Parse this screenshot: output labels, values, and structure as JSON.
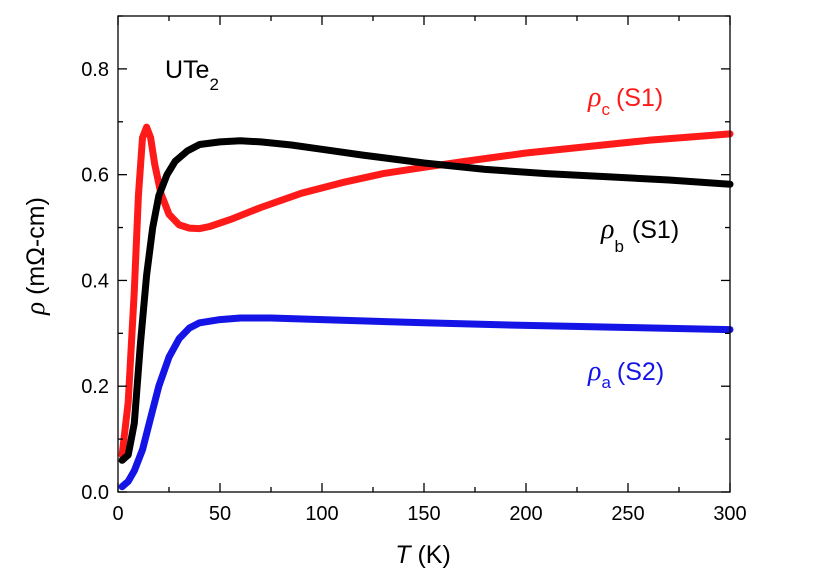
{
  "chart_data": {
    "type": "line",
    "title": "UTe",
    "title_subscript": "2",
    "xlabel_symbol": "T",
    "xlabel_unit": "(K)",
    "ylabel_symbol": "ρ",
    "ylabel_unit": "(mΩ-cm)",
    "xlim": [
      0,
      300
    ],
    "ylim": [
      0,
      0.9
    ],
    "x_ticks": [
      0,
      50,
      100,
      150,
      200,
      250,
      300
    ],
    "x_tick_labels": [
      "0",
      "50",
      "100",
      "150",
      "200",
      "250",
      "300"
    ],
    "y_ticks": [
      0.0,
      0.2,
      0.4,
      0.6,
      0.8
    ],
    "y_tick_labels": [
      "0.0",
      "0.2",
      "0.4",
      "0.6",
      "0.8"
    ],
    "grid": false,
    "series": [
      {
        "name": "ρc (S1)",
        "symbol": "ρ",
        "subscript": "c",
        "sample": "(S1)",
        "color": "#ff1a1a",
        "points": [
          [
            2,
            0.07
          ],
          [
            5,
            0.17
          ],
          [
            8,
            0.38
          ],
          [
            10,
            0.56
          ],
          [
            12,
            0.67
          ],
          [
            14,
            0.69
          ],
          [
            16,
            0.67
          ],
          [
            18,
            0.62
          ],
          [
            21,
            0.565
          ],
          [
            25,
            0.525
          ],
          [
            30,
            0.505
          ],
          [
            35,
            0.499
          ],
          [
            40,
            0.498
          ],
          [
            45,
            0.502
          ],
          [
            55,
            0.515
          ],
          [
            70,
            0.538
          ],
          [
            90,
            0.565
          ],
          [
            110,
            0.585
          ],
          [
            130,
            0.602
          ],
          [
            150,
            0.614
          ],
          [
            170,
            0.625
          ],
          [
            200,
            0.641
          ],
          [
            230,
            0.653
          ],
          [
            260,
            0.665
          ],
          [
            290,
            0.674
          ],
          [
            300,
            0.677
          ]
        ]
      },
      {
        "name": "ρb (S1)",
        "symbol": "ρ",
        "subscript": "b",
        "sample": "(S1)",
        "color": "#000000",
        "points": [
          [
            2,
            0.06
          ],
          [
            5,
            0.07
          ],
          [
            8,
            0.13
          ],
          [
            11,
            0.28
          ],
          [
            14,
            0.41
          ],
          [
            17,
            0.5
          ],
          [
            20,
            0.56
          ],
          [
            24,
            0.6
          ],
          [
            28,
            0.625
          ],
          [
            34,
            0.645
          ],
          [
            40,
            0.657
          ],
          [
            50,
            0.662
          ],
          [
            60,
            0.664
          ],
          [
            70,
            0.662
          ],
          [
            85,
            0.656
          ],
          [
            100,
            0.648
          ],
          [
            120,
            0.637
          ],
          [
            150,
            0.622
          ],
          [
            180,
            0.61
          ],
          [
            210,
            0.602
          ],
          [
            240,
            0.596
          ],
          [
            270,
            0.59
          ],
          [
            300,
            0.582
          ]
        ]
      },
      {
        "name": "ρa (S2)",
        "symbol": "ρ",
        "subscript": "a",
        "sample": "(S2)",
        "color": "#1414e6",
        "points": [
          [
            2,
            0.01
          ],
          [
            5,
            0.02
          ],
          [
            8,
            0.04
          ],
          [
            12,
            0.08
          ],
          [
            16,
            0.14
          ],
          [
            20,
            0.2
          ],
          [
            25,
            0.255
          ],
          [
            30,
            0.29
          ],
          [
            35,
            0.31
          ],
          [
            40,
            0.32
          ],
          [
            50,
            0.326
          ],
          [
            60,
            0.329
          ],
          [
            75,
            0.329
          ],
          [
            100,
            0.326
          ],
          [
            150,
            0.32
          ],
          [
            200,
            0.315
          ],
          [
            250,
            0.311
          ],
          [
            300,
            0.307
          ]
        ]
      }
    ],
    "annotations": [
      {
        "series": 0,
        "position": "upper-right"
      },
      {
        "series": 1,
        "position": "right"
      },
      {
        "series": 2,
        "position": "lower-right"
      }
    ]
  }
}
